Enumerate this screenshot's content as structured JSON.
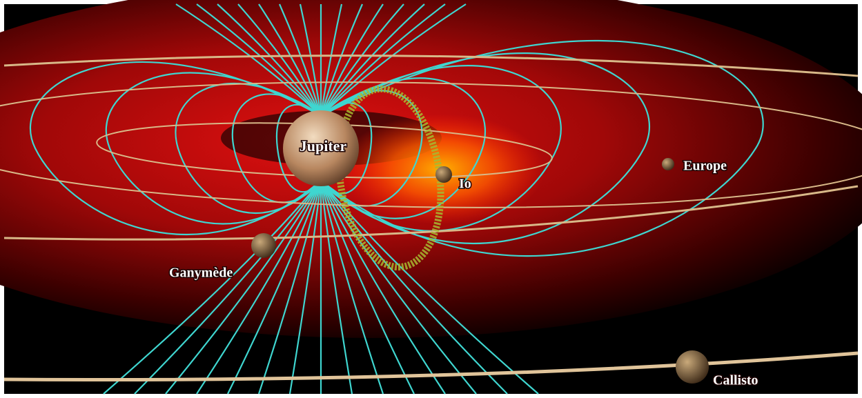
{
  "bodies": [
    {
      "label": "Jupiter"
    },
    {
      "label": "Io"
    },
    {
      "label": "Europe"
    },
    {
      "label": "Ganymède"
    },
    {
      "label": "Callisto"
    }
  ]
}
